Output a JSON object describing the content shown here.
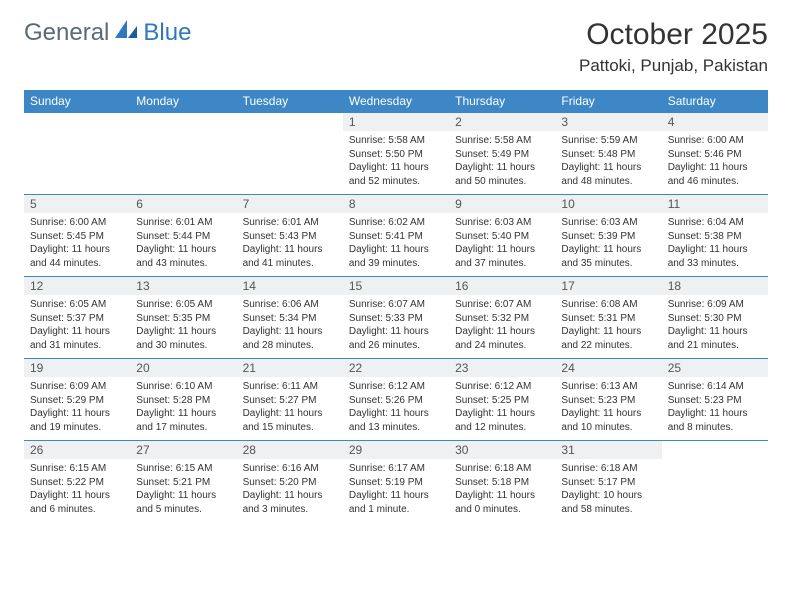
{
  "brand": {
    "part1": "General",
    "part2": "Blue"
  },
  "title": "October 2025",
  "location": "Pattoki, Punjab, Pakistan",
  "colors": {
    "header_bg": "#3d87c7",
    "header_text": "#ffffff",
    "daynum_bg": "#eef0f2",
    "border": "#3d87c7",
    "brand_gray": "#5a6a78",
    "brand_blue": "#2f78bd"
  },
  "weekdays": [
    "Sunday",
    "Monday",
    "Tuesday",
    "Wednesday",
    "Thursday",
    "Friday",
    "Saturday"
  ],
  "weeks": [
    [
      null,
      null,
      null,
      {
        "n": "1",
        "sr": "Sunrise: 5:58 AM",
        "ss": "Sunset: 5:50 PM",
        "dl": "Daylight: 11 hours and 52 minutes."
      },
      {
        "n": "2",
        "sr": "Sunrise: 5:58 AM",
        "ss": "Sunset: 5:49 PM",
        "dl": "Daylight: 11 hours and 50 minutes."
      },
      {
        "n": "3",
        "sr": "Sunrise: 5:59 AM",
        "ss": "Sunset: 5:48 PM",
        "dl": "Daylight: 11 hours and 48 minutes."
      },
      {
        "n": "4",
        "sr": "Sunrise: 6:00 AM",
        "ss": "Sunset: 5:46 PM",
        "dl": "Daylight: 11 hours and 46 minutes."
      }
    ],
    [
      {
        "n": "5",
        "sr": "Sunrise: 6:00 AM",
        "ss": "Sunset: 5:45 PM",
        "dl": "Daylight: 11 hours and 44 minutes."
      },
      {
        "n": "6",
        "sr": "Sunrise: 6:01 AM",
        "ss": "Sunset: 5:44 PM",
        "dl": "Daylight: 11 hours and 43 minutes."
      },
      {
        "n": "7",
        "sr": "Sunrise: 6:01 AM",
        "ss": "Sunset: 5:43 PM",
        "dl": "Daylight: 11 hours and 41 minutes."
      },
      {
        "n": "8",
        "sr": "Sunrise: 6:02 AM",
        "ss": "Sunset: 5:41 PM",
        "dl": "Daylight: 11 hours and 39 minutes."
      },
      {
        "n": "9",
        "sr": "Sunrise: 6:03 AM",
        "ss": "Sunset: 5:40 PM",
        "dl": "Daylight: 11 hours and 37 minutes."
      },
      {
        "n": "10",
        "sr": "Sunrise: 6:03 AM",
        "ss": "Sunset: 5:39 PM",
        "dl": "Daylight: 11 hours and 35 minutes."
      },
      {
        "n": "11",
        "sr": "Sunrise: 6:04 AM",
        "ss": "Sunset: 5:38 PM",
        "dl": "Daylight: 11 hours and 33 minutes."
      }
    ],
    [
      {
        "n": "12",
        "sr": "Sunrise: 6:05 AM",
        "ss": "Sunset: 5:37 PM",
        "dl": "Daylight: 11 hours and 31 minutes."
      },
      {
        "n": "13",
        "sr": "Sunrise: 6:05 AM",
        "ss": "Sunset: 5:35 PM",
        "dl": "Daylight: 11 hours and 30 minutes."
      },
      {
        "n": "14",
        "sr": "Sunrise: 6:06 AM",
        "ss": "Sunset: 5:34 PM",
        "dl": "Daylight: 11 hours and 28 minutes."
      },
      {
        "n": "15",
        "sr": "Sunrise: 6:07 AM",
        "ss": "Sunset: 5:33 PM",
        "dl": "Daylight: 11 hours and 26 minutes."
      },
      {
        "n": "16",
        "sr": "Sunrise: 6:07 AM",
        "ss": "Sunset: 5:32 PM",
        "dl": "Daylight: 11 hours and 24 minutes."
      },
      {
        "n": "17",
        "sr": "Sunrise: 6:08 AM",
        "ss": "Sunset: 5:31 PM",
        "dl": "Daylight: 11 hours and 22 minutes."
      },
      {
        "n": "18",
        "sr": "Sunrise: 6:09 AM",
        "ss": "Sunset: 5:30 PM",
        "dl": "Daylight: 11 hours and 21 minutes."
      }
    ],
    [
      {
        "n": "19",
        "sr": "Sunrise: 6:09 AM",
        "ss": "Sunset: 5:29 PM",
        "dl": "Daylight: 11 hours and 19 minutes."
      },
      {
        "n": "20",
        "sr": "Sunrise: 6:10 AM",
        "ss": "Sunset: 5:28 PM",
        "dl": "Daylight: 11 hours and 17 minutes."
      },
      {
        "n": "21",
        "sr": "Sunrise: 6:11 AM",
        "ss": "Sunset: 5:27 PM",
        "dl": "Daylight: 11 hours and 15 minutes."
      },
      {
        "n": "22",
        "sr": "Sunrise: 6:12 AM",
        "ss": "Sunset: 5:26 PM",
        "dl": "Daylight: 11 hours and 13 minutes."
      },
      {
        "n": "23",
        "sr": "Sunrise: 6:12 AM",
        "ss": "Sunset: 5:25 PM",
        "dl": "Daylight: 11 hours and 12 minutes."
      },
      {
        "n": "24",
        "sr": "Sunrise: 6:13 AM",
        "ss": "Sunset: 5:23 PM",
        "dl": "Daylight: 11 hours and 10 minutes."
      },
      {
        "n": "25",
        "sr": "Sunrise: 6:14 AM",
        "ss": "Sunset: 5:23 PM",
        "dl": "Daylight: 11 hours and 8 minutes."
      }
    ],
    [
      {
        "n": "26",
        "sr": "Sunrise: 6:15 AM",
        "ss": "Sunset: 5:22 PM",
        "dl": "Daylight: 11 hours and 6 minutes."
      },
      {
        "n": "27",
        "sr": "Sunrise: 6:15 AM",
        "ss": "Sunset: 5:21 PM",
        "dl": "Daylight: 11 hours and 5 minutes."
      },
      {
        "n": "28",
        "sr": "Sunrise: 6:16 AM",
        "ss": "Sunset: 5:20 PM",
        "dl": "Daylight: 11 hours and 3 minutes."
      },
      {
        "n": "29",
        "sr": "Sunrise: 6:17 AM",
        "ss": "Sunset: 5:19 PM",
        "dl": "Daylight: 11 hours and 1 minute."
      },
      {
        "n": "30",
        "sr": "Sunrise: 6:18 AM",
        "ss": "Sunset: 5:18 PM",
        "dl": "Daylight: 11 hours and 0 minutes."
      },
      {
        "n": "31",
        "sr": "Sunrise: 6:18 AM",
        "ss": "Sunset: 5:17 PM",
        "dl": "Daylight: 10 hours and 58 minutes."
      },
      null
    ]
  ]
}
